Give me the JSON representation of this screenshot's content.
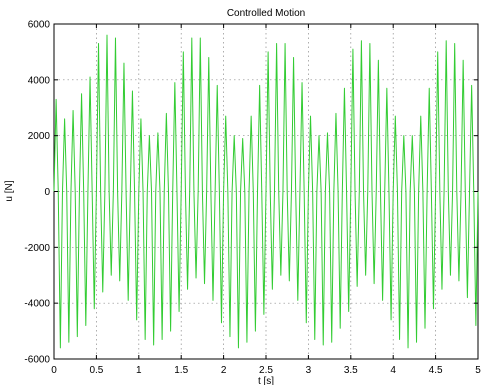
{
  "chart_data": {
    "type": "line",
    "title": "Controlled Motion",
    "xlabel": "t   [s]",
    "ylabel": "u   [N]",
    "xlim": [
      0,
      5
    ],
    "ylim": [
      -6000,
      6000
    ],
    "xticks": [
      "0",
      "0.5",
      "1",
      "1.5",
      "2",
      "2.5",
      "3",
      "3.5",
      "4",
      "4.5",
      "5"
    ],
    "yticks": [
      "6000",
      "4000",
      "2000",
      "0",
      "-2000",
      "-4000",
      "-6000"
    ],
    "grid": true,
    "series": [
      {
        "color": "#33cc33",
        "x": [
          0,
          0.025,
          0.05,
          0.075,
          0.1,
          0.125,
          0.15,
          0.175,
          0.2,
          0.225,
          0.25,
          0.275,
          0.3,
          0.325,
          0.35,
          0.375,
          0.4,
          0.425,
          0.45,
          0.475,
          0.5,
          0.525,
          0.55,
          0.575,
          0.6,
          0.625,
          0.65,
          0.675,
          0.7,
          0.725,
          0.75,
          0.775,
          0.8,
          0.825,
          0.85,
          0.875,
          0.9,
          0.925,
          0.95,
          0.975,
          1,
          1.025,
          1.05,
          1.075,
          1.1,
          1.125,
          1.15,
          1.175,
          1.2,
          1.225,
          1.25,
          1.275,
          1.3,
          1.325,
          1.35,
          1.375,
          1.4,
          1.425,
          1.45,
          1.475,
          1.5,
          1.525,
          1.55,
          1.575,
          1.6,
          1.625,
          1.65,
          1.675,
          1.7,
          1.725,
          1.75,
          1.775,
          1.8,
          1.825,
          1.85,
          1.875,
          1.9,
          1.925,
          1.95,
          1.975,
          2,
          2.025,
          2.05,
          2.075,
          2.1,
          2.125,
          2.15,
          2.175,
          2.2,
          2.225,
          2.25,
          2.275,
          2.3,
          2.325,
          2.35,
          2.375,
          2.4,
          2.425,
          2.45,
          2.475,
          2.5,
          2.525,
          2.55,
          2.575,
          2.6,
          2.625,
          2.65,
          2.675,
          2.7,
          2.725,
          2.75,
          2.775,
          2.8,
          2.825,
          2.85,
          2.875,
          2.9,
          2.925,
          2.95,
          2.975,
          3,
          3.025,
          3.05,
          3.075,
          3.1,
          3.125,
          3.15,
          3.175,
          3.2,
          3.225,
          3.25,
          3.275,
          3.3,
          3.325,
          3.35,
          3.375,
          3.4,
          3.425,
          3.45,
          3.475,
          3.5,
          3.525,
          3.55,
          3.575,
          3.6,
          3.625,
          3.65,
          3.675,
          3.7,
          3.725,
          3.75,
          3.775,
          3.8,
          3.825,
          3.85,
          3.875,
          3.9,
          3.925,
          3.95,
          3.975,
          4,
          4.025,
          4.05,
          4.075,
          4.1,
          4.125,
          4.15,
          4.175,
          4.2,
          4.225,
          4.25,
          4.275,
          4.3,
          4.325,
          4.35,
          4.375,
          4.4,
          4.425,
          4.45,
          4.475,
          4.5,
          4.525,
          4.55,
          4.575,
          4.6,
          4.625,
          4.65,
          4.675,
          4.7,
          4.725,
          4.75,
          4.775,
          4.8,
          4.825,
          4.85,
          4.875,
          4.9,
          4.925,
          4.95,
          4.975,
          5
        ],
        "y": [
          0,
          3300,
          0,
          -5600,
          0,
          2600,
          0,
          -5400,
          0,
          2900,
          0,
          -5200,
          0,
          3500,
          0,
          -4800,
          0,
          4100,
          0,
          -4200,
          0,
          5300,
          0,
          -3600,
          0,
          5600,
          0,
          -3000,
          0,
          5500,
          0,
          -3200,
          0,
          4600,
          0,
          -3900,
          0,
          3600,
          0,
          -4600,
          0,
          2600,
          0,
          -5300,
          0,
          2000,
          0,
          -5500,
          0,
          2100,
          0,
          -5300,
          0,
          2800,
          0,
          -5000,
          0,
          3900,
          0,
          -4300,
          0,
          5000,
          0,
          -3500,
          0,
          5500,
          0,
          -3100,
          0,
          5500,
          0,
          -3300,
          0,
          4800,
          0,
          -3900,
          0,
          3800,
          0,
          -4700,
          0,
          2700,
          0,
          -5200,
          0,
          2000,
          0,
          -5600,
          0,
          1900,
          0,
          -5400,
          0,
          2700,
          0,
          -5000,
          0,
          3800,
          0,
          -4400,
          0,
          5000,
          0,
          -3500,
          0,
          5300,
          0,
          -3000,
          0,
          5300,
          0,
          -3200,
          0,
          4800,
          0,
          -3900,
          0,
          3900,
          0,
          -4700,
          0,
          2700,
          0,
          -5300,
          0,
          2000,
          0,
          -5500,
          0,
          2100,
          0,
          -5400,
          0,
          2800,
          0,
          -4900,
          0,
          3700,
          0,
          -4300,
          0,
          5100,
          0,
          -3400,
          0,
          5400,
          0,
          -3000,
          0,
          5300,
          0,
          -3300,
          0,
          4700,
          0,
          -3900,
          0,
          3700,
          0,
          -4600,
          0,
          2700,
          0,
          -5300,
          0,
          2000,
          0,
          -5600,
          0,
          2000,
          0,
          -5400,
          0,
          2700,
          0,
          -4900,
          0,
          3700,
          0,
          -4200,
          0,
          5000,
          0,
          -3500,
          0,
          5400,
          0,
          -3000,
          0,
          5300,
          0,
          -3200,
          0,
          4700,
          0,
          -3800,
          0,
          3800,
          0,
          -4800,
          0
        ]
      }
    ]
  }
}
